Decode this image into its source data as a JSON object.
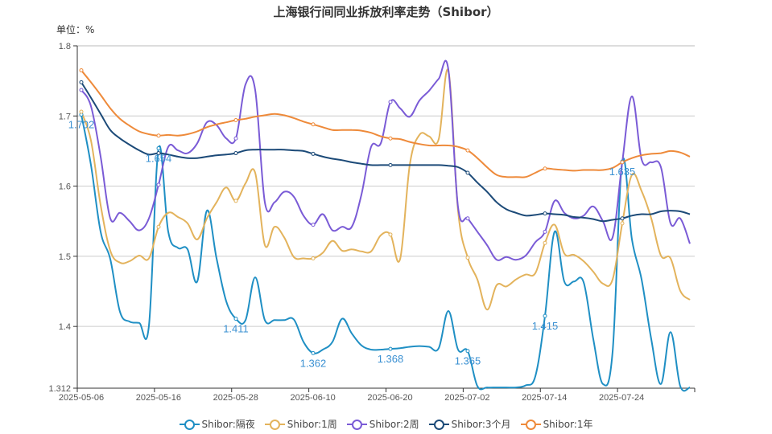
{
  "chart_data": {
    "type": "line",
    "title": "上海银行间同业拆放利率走势（Shibor）",
    "ylabel": "单位：%",
    "ylim": [
      1.312,
      1.8
    ],
    "y_ticks": [
      "1.8",
      "1.7",
      "1.6",
      "1.5",
      "1.4",
      "1.312"
    ],
    "x_tick_labels": [
      "2025-05-06",
      "2025-05-16",
      "2025-05-28",
      "2025-06-10",
      "2025-06-20",
      "2025-07-02",
      "2025-07-14",
      "2025-07-24"
    ],
    "x": [
      "2025-05-06",
      "2025-05-07",
      "2025-05-08",
      "2025-05-09",
      "2025-05-12",
      "2025-05-13",
      "2025-05-14",
      "2025-05-15",
      "2025-05-16",
      "2025-05-19",
      "2025-05-20",
      "2025-05-21",
      "2025-05-22",
      "2025-05-23",
      "2025-05-26",
      "2025-05-27",
      "2025-05-28",
      "2025-05-29",
      "2025-05-30",
      "2025-06-03",
      "2025-06-04",
      "2025-06-05",
      "2025-06-06",
      "2025-06-09",
      "2025-06-10",
      "2025-06-11",
      "2025-06-12",
      "2025-06-13",
      "2025-06-16",
      "2025-06-17",
      "2025-06-18",
      "2025-06-19",
      "2025-06-20",
      "2025-06-23",
      "2025-06-24",
      "2025-06-25",
      "2025-06-26",
      "2025-06-27",
      "2025-06-30",
      "2025-07-01",
      "2025-07-02",
      "2025-07-03",
      "2025-07-04",
      "2025-07-07",
      "2025-07-08",
      "2025-07-09",
      "2025-07-10",
      "2025-07-11",
      "2025-07-14",
      "2025-07-15",
      "2025-07-16",
      "2025-07-17",
      "2025-07-18",
      "2025-07-21",
      "2025-07-22",
      "2025-07-23",
      "2025-07-24",
      "2025-07-25",
      "2025-07-28",
      "2025-07-29",
      "2025-07-30",
      "2025-07-31",
      "2025-08-01",
      "2025-08-04"
    ],
    "grid": true,
    "smooth": true,
    "legend_position": "bottom",
    "series": [
      {
        "name": "Shibor:隔夜",
        "color": "#1f8fc4",
        "labeled": true,
        "values": [
          1.702,
          1.63,
          1.535,
          1.496,
          1.421,
          1.407,
          1.405,
          1.401,
          1.654,
          1.535,
          1.512,
          1.51,
          1.464,
          1.565,
          1.497,
          1.436,
          1.411,
          1.409,
          1.47,
          1.409,
          1.409,
          1.409,
          1.41,
          1.378,
          1.362,
          1.367,
          1.378,
          1.411,
          1.39,
          1.373,
          1.367,
          1.367,
          1.368,
          1.369,
          1.371,
          1.372,
          1.371,
          1.369,
          1.422,
          1.367,
          1.365,
          1.315,
          1.313,
          1.313,
          1.313,
          1.313,
          1.316,
          1.329,
          1.415,
          1.535,
          1.464,
          1.464,
          1.463,
          1.382,
          1.318,
          1.364,
          1.635,
          1.524,
          1.467,
          1.382,
          1.318,
          1.392,
          1.315,
          1.313
        ]
      },
      {
        "name": "Shibor:1周",
        "color": "#e3b35c",
        "values": [
          1.706,
          1.665,
          1.573,
          1.508,
          1.491,
          1.493,
          1.501,
          1.497,
          1.542,
          1.562,
          1.556,
          1.547,
          1.524,
          1.554,
          1.577,
          1.598,
          1.579,
          1.604,
          1.619,
          1.516,
          1.542,
          1.527,
          1.499,
          1.497,
          1.497,
          1.505,
          1.522,
          1.508,
          1.51,
          1.507,
          1.507,
          1.53,
          1.531,
          1.496,
          1.63,
          1.673,
          1.671,
          1.667,
          1.764,
          1.565,
          1.498,
          1.467,
          1.424,
          1.459,
          1.457,
          1.467,
          1.474,
          1.476,
          1.519,
          1.545,
          1.504,
          1.502,
          1.493,
          1.478,
          1.461,
          1.467,
          1.547,
          1.616,
          1.593,
          1.554,
          1.501,
          1.497,
          1.451,
          1.438
        ]
      },
      {
        "name": "Shibor:2周",
        "color": "#7a5bd6",
        "values": [
          1.737,
          1.714,
          1.642,
          1.554,
          1.562,
          1.55,
          1.537,
          1.554,
          1.602,
          1.656,
          1.651,
          1.647,
          1.661,
          1.691,
          1.687,
          1.668,
          1.668,
          1.745,
          1.737,
          1.577,
          1.577,
          1.592,
          1.585,
          1.558,
          1.545,
          1.56,
          1.537,
          1.542,
          1.542,
          1.588,
          1.656,
          1.661,
          1.72,
          1.711,
          1.699,
          1.722,
          1.736,
          1.753,
          1.766,
          1.57,
          1.554,
          1.535,
          1.516,
          1.495,
          1.499,
          1.495,
          1.501,
          1.52,
          1.535,
          1.579,
          1.562,
          1.554,
          1.558,
          1.571,
          1.55,
          1.527,
          1.634,
          1.728,
          1.638,
          1.634,
          1.627,
          1.547,
          1.554,
          1.518
        ]
      },
      {
        "name": "Shibor:3个月",
        "color": "#1c4a78",
        "values": [
          1.748,
          1.726,
          1.703,
          1.68,
          1.668,
          1.659,
          1.651,
          1.645,
          1.647,
          1.645,
          1.642,
          1.64,
          1.64,
          1.642,
          1.644,
          1.645,
          1.647,
          1.651,
          1.652,
          1.652,
          1.652,
          1.652,
          1.651,
          1.65,
          1.646,
          1.642,
          1.639,
          1.637,
          1.634,
          1.632,
          1.63,
          1.63,
          1.63,
          1.63,
          1.63,
          1.63,
          1.63,
          1.63,
          1.629,
          1.627,
          1.619,
          1.605,
          1.592,
          1.577,
          1.567,
          1.562,
          1.558,
          1.559,
          1.561,
          1.56,
          1.559,
          1.556,
          1.555,
          1.553,
          1.55,
          1.552,
          1.554,
          1.558,
          1.56,
          1.56,
          1.564,
          1.565,
          1.564,
          1.56
        ]
      },
      {
        "name": "Shibor:1年",
        "color": "#ee8a3a",
        "values": [
          1.765,
          1.748,
          1.73,
          1.711,
          1.696,
          1.686,
          1.678,
          1.674,
          1.672,
          1.673,
          1.672,
          1.674,
          1.678,
          1.684,
          1.688,
          1.691,
          1.694,
          1.696,
          1.699,
          1.701,
          1.703,
          1.701,
          1.697,
          1.692,
          1.688,
          1.684,
          1.68,
          1.68,
          1.68,
          1.679,
          1.676,
          1.671,
          1.668,
          1.667,
          1.663,
          1.66,
          1.658,
          1.658,
          1.658,
          1.656,
          1.651,
          1.64,
          1.627,
          1.616,
          1.613,
          1.613,
          1.613,
          1.619,
          1.625,
          1.624,
          1.623,
          1.622,
          1.623,
          1.623,
          1.623,
          1.626,
          1.634,
          1.64,
          1.644,
          1.646,
          1.647,
          1.65,
          1.648,
          1.642
        ]
      }
    ]
  }
}
